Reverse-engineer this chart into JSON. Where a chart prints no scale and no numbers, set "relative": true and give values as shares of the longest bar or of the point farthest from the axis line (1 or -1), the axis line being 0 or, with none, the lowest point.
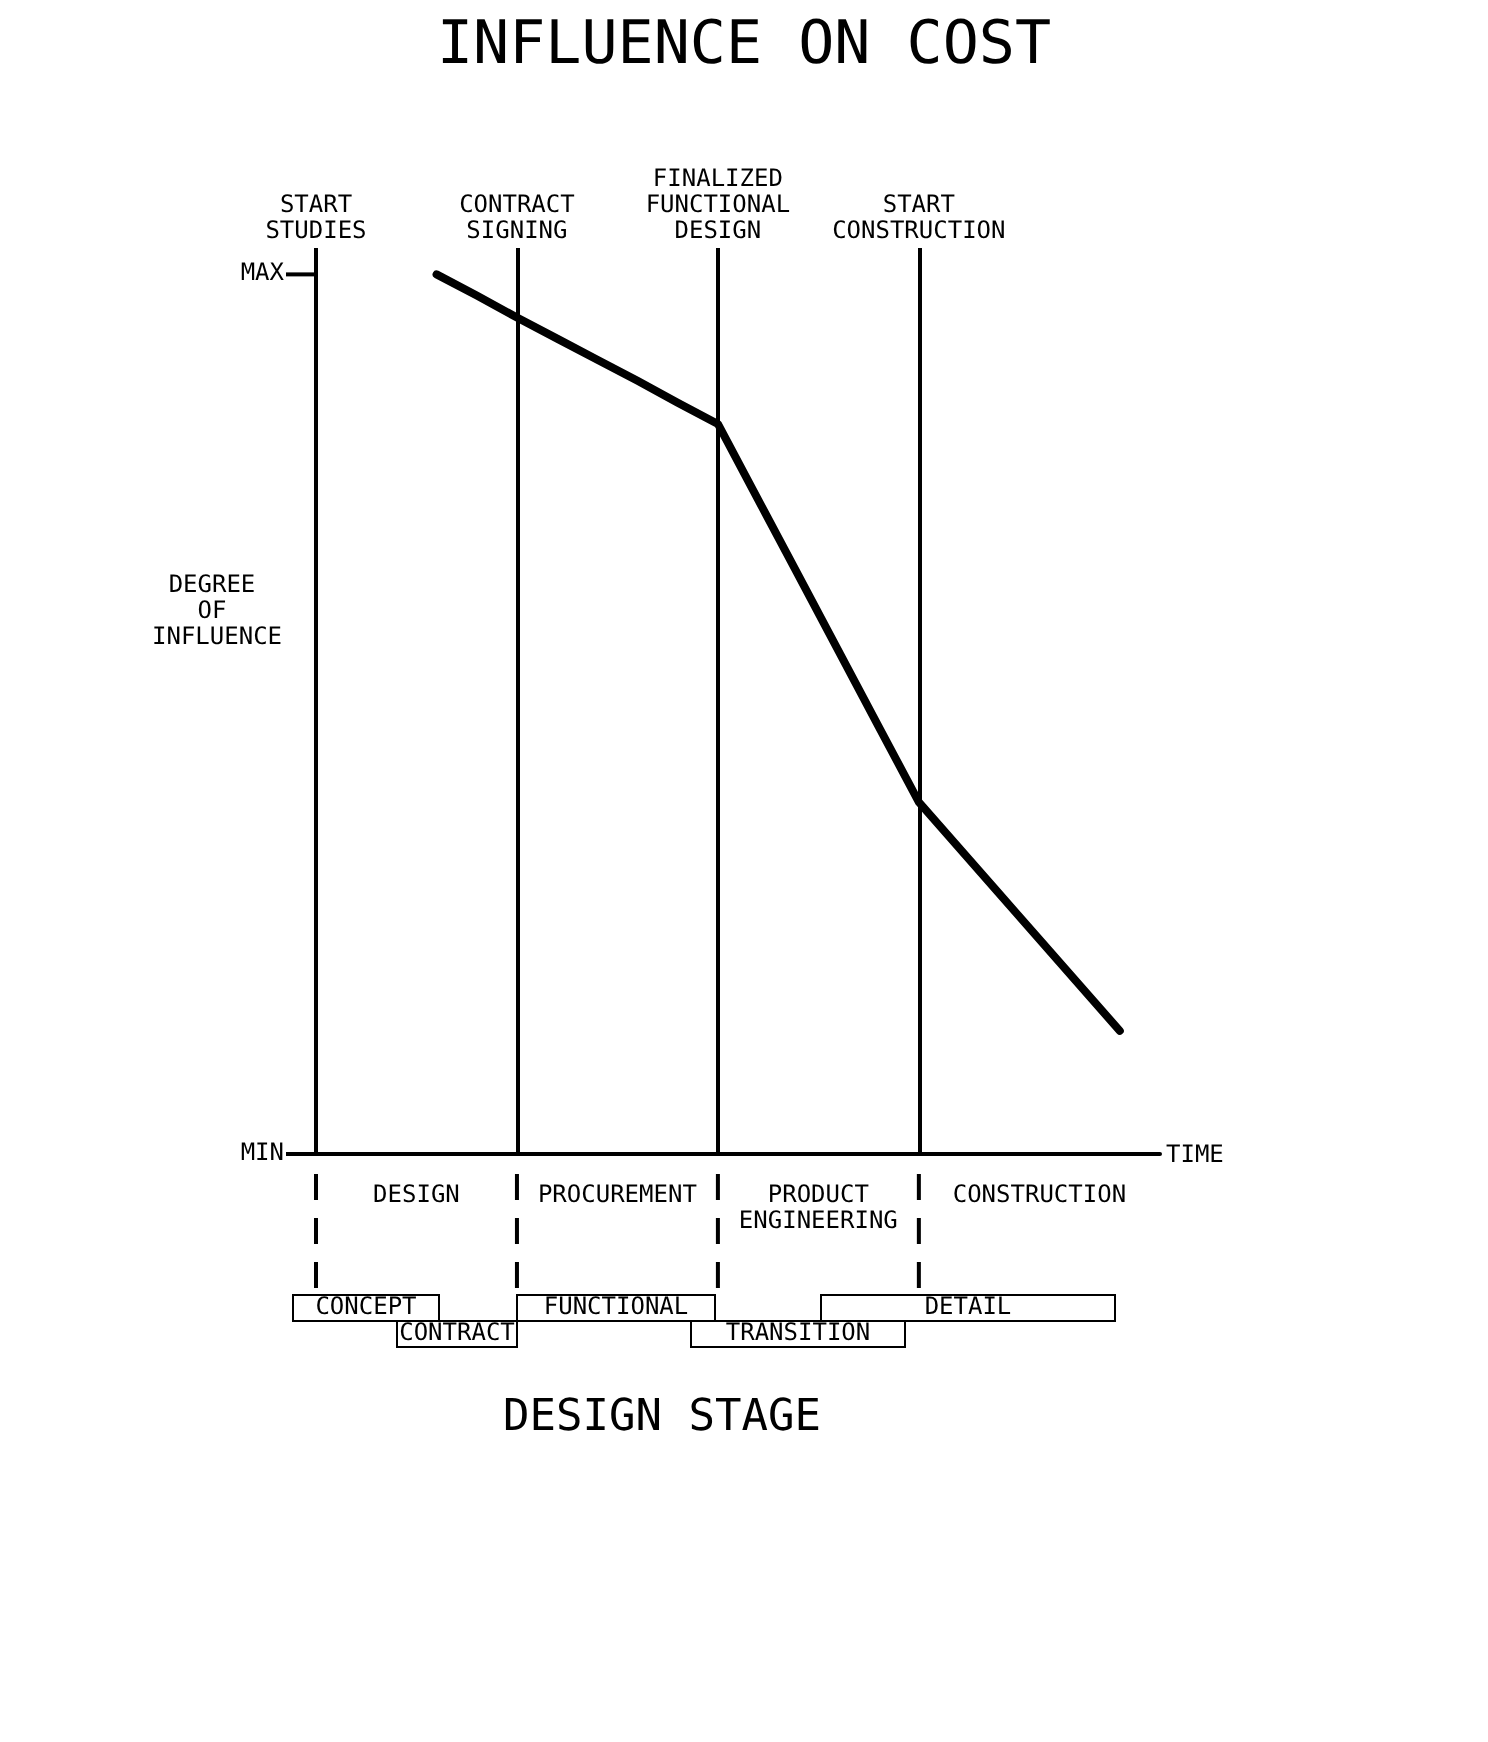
{
  "chart_data": [
    {
      "type": "line",
      "title": "INFLUENCE ON COST",
      "xlabel": "TIME",
      "ylabel": "DEGREE OF INFLUENCE",
      "relative": true,
      "categories": [
        "START STUDIES",
        null,
        null,
        null,
        null,
        "CONTRACT SIGNING",
        null,
        null,
        null,
        null,
        "FINALIZED FUNCTIONAL DESIGN",
        null,
        null,
        null,
        null,
        "START CONSTRUCTION",
        null,
        null,
        null,
        null,
        null,
        null
      ],
      "values": [
        null,
        null,
        null,
        1.0,
        0.976,
        0.951,
        0.927,
        0.903,
        0.879,
        0.854,
        0.83,
        0.744,
        0.658,
        0.572,
        0.486,
        0.4,
        0.348,
        0.296,
        0.244,
        0.192,
        0.14,
        null
      ],
      "color": "#000000",
      "grid": "x",
      "annotations": [
        "MIN",
        "MAX",
        "DESIGN",
        "PROCUREMENT",
        "PRODUCT ENGINEERING",
        "CONSTRUCTION"
      ]
    },
    {
      "type": "other",
      "xlabel": "DESIGN STAGE",
      "annotations": [
        "CONCEPT",
        "CONTRACT",
        "FUNCTIONAL",
        "TRANSITION",
        "DETAIL"
      ]
    }
  ]
}
